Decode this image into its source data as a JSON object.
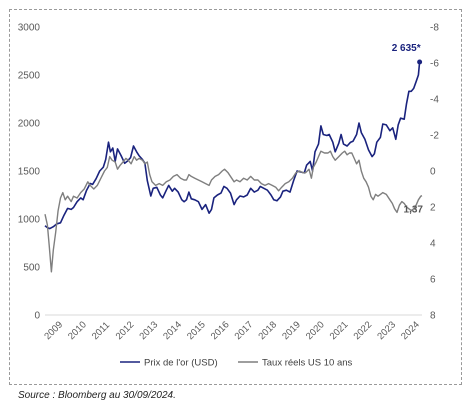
{
  "source_note": "Source : Bloomberg au 30/09/2024.",
  "colors": {
    "gold": "#1a237e",
    "real_rates": "#7f7f7f",
    "axis": "#d9d9d9",
    "tick_text": "#595959"
  },
  "chart_data": {
    "type": "line",
    "title": "",
    "xlabel": "",
    "ylabel": "",
    "y_left_ticks": [
      "0",
      "500",
      "1000",
      "1500",
      "2000",
      "2500",
      "3000"
    ],
    "y_left_range": [
      0,
      3000
    ],
    "y_right_ticks": [
      "8",
      "6",
      "4",
      "2",
      "0",
      "-2",
      "-4",
      "-6",
      "-8"
    ],
    "y_right_range": [
      8,
      -8
    ],
    "y_right_inverted": true,
    "x_ticks": [
      "2009",
      "2010",
      "2011",
      "2012",
      "2013",
      "2014",
      "2015",
      "2016",
      "2017",
      "2018",
      "2019",
      "2020",
      "2021",
      "2022",
      "2023",
      "2024"
    ],
    "x_range": [
      2009,
      2024.85
    ],
    "grid": false,
    "legend_position": "bottom",
    "annotations": [
      {
        "text": "2 635*",
        "series": "gold"
      },
      {
        "text": "1,37",
        "series": "real_rates"
      }
    ],
    "series": [
      {
        "name": "Prix de l'or (USD)",
        "key": "gold",
        "axis": "left",
        "color": "#1a237e",
        "points": [
          [
            2009.0,
            930
          ],
          [
            2009.1,
            910
          ],
          [
            2009.2,
            900
          ],
          [
            2009.35,
            920
          ],
          [
            2009.5,
            950
          ],
          [
            2009.65,
            960
          ],
          [
            2009.8,
            1040
          ],
          [
            2009.95,
            1110
          ],
          [
            2010.1,
            1100
          ],
          [
            2010.2,
            1120
          ],
          [
            2010.35,
            1180
          ],
          [
            2010.5,
            1220
          ],
          [
            2010.6,
            1200
          ],
          [
            2010.75,
            1300
          ],
          [
            2010.9,
            1370
          ],
          [
            2011.0,
            1360
          ],
          [
            2011.15,
            1420
          ],
          [
            2011.3,
            1500
          ],
          [
            2011.45,
            1540
          ],
          [
            2011.55,
            1620
          ],
          [
            2011.67,
            1800
          ],
          [
            2011.75,
            1700
          ],
          [
            2011.85,
            1740
          ],
          [
            2011.95,
            1600
          ],
          [
            2012.05,
            1730
          ],
          [
            2012.2,
            1660
          ],
          [
            2012.35,
            1580
          ],
          [
            2012.45,
            1600
          ],
          [
            2012.6,
            1640
          ],
          [
            2012.72,
            1760
          ],
          [
            2012.85,
            1700
          ],
          [
            2012.95,
            1660
          ],
          [
            2013.1,
            1620
          ],
          [
            2013.2,
            1580
          ],
          [
            2013.3,
            1400
          ],
          [
            2013.45,
            1240
          ],
          [
            2013.55,
            1320
          ],
          [
            2013.7,
            1330
          ],
          [
            2013.85,
            1250
          ],
          [
            2013.95,
            1220
          ],
          [
            2014.1,
            1300
          ],
          [
            2014.2,
            1350
          ],
          [
            2014.35,
            1290
          ],
          [
            2014.45,
            1320
          ],
          [
            2014.6,
            1280
          ],
          [
            2014.75,
            1200
          ],
          [
            2014.85,
            1180
          ],
          [
            2014.95,
            1200
          ],
          [
            2015.05,
            1280
          ],
          [
            2015.15,
            1210
          ],
          [
            2015.3,
            1200
          ],
          [
            2015.45,
            1180
          ],
          [
            2015.6,
            1100
          ],
          [
            2015.75,
            1150
          ],
          [
            2015.9,
            1060
          ],
          [
            2016.0,
            1100
          ],
          [
            2016.1,
            1220
          ],
          [
            2016.25,
            1250
          ],
          [
            2016.4,
            1270
          ],
          [
            2016.52,
            1340
          ],
          [
            2016.65,
            1320
          ],
          [
            2016.8,
            1270
          ],
          [
            2016.95,
            1150
          ],
          [
            2017.05,
            1200
          ],
          [
            2017.2,
            1240
          ],
          [
            2017.35,
            1230
          ],
          [
            2017.5,
            1250
          ],
          [
            2017.65,
            1320
          ],
          [
            2017.8,
            1280
          ],
          [
            2017.95,
            1300
          ],
          [
            2018.05,
            1340
          ],
          [
            2018.2,
            1320
          ],
          [
            2018.35,
            1300
          ],
          [
            2018.5,
            1250
          ],
          [
            2018.62,
            1200
          ],
          [
            2018.75,
            1190
          ],
          [
            2018.9,
            1230
          ],
          [
            2019.0,
            1290
          ],
          [
            2019.15,
            1300
          ],
          [
            2019.3,
            1280
          ],
          [
            2019.45,
            1400
          ],
          [
            2019.6,
            1500
          ],
          [
            2019.75,
            1490
          ],
          [
            2019.9,
            1480
          ],
          [
            2020.0,
            1560
          ],
          [
            2020.15,
            1600
          ],
          [
            2020.25,
            1500
          ],
          [
            2020.35,
            1700
          ],
          [
            2020.5,
            1780
          ],
          [
            2020.6,
            1970
          ],
          [
            2020.7,
            1880
          ],
          [
            2020.85,
            1870
          ],
          [
            2020.95,
            1880
          ],
          [
            2021.1,
            1800
          ],
          [
            2021.2,
            1700
          ],
          [
            2021.35,
            1790
          ],
          [
            2021.45,
            1880
          ],
          [
            2021.55,
            1780
          ],
          [
            2021.7,
            1760
          ],
          [
            2021.85,
            1800
          ],
          [
            2021.95,
            1810
          ],
          [
            2022.1,
            1880
          ],
          [
            2022.2,
            2000
          ],
          [
            2022.3,
            1900
          ],
          [
            2022.45,
            1830
          ],
          [
            2022.6,
            1720
          ],
          [
            2022.75,
            1650
          ],
          [
            2022.85,
            1680
          ],
          [
            2022.95,
            1800
          ],
          [
            2023.1,
            1850
          ],
          [
            2023.2,
            1990
          ],
          [
            2023.35,
            1980
          ],
          [
            2023.5,
            1920
          ],
          [
            2023.62,
            1950
          ],
          [
            2023.75,
            1830
          ],
          [
            2023.85,
            1980
          ],
          [
            2023.95,
            2050
          ],
          [
            2024.1,
            2040
          ],
          [
            2024.2,
            2200
          ],
          [
            2024.3,
            2330
          ],
          [
            2024.4,
            2330
          ],
          [
            2024.5,
            2360
          ],
          [
            2024.6,
            2430
          ],
          [
            2024.7,
            2500
          ],
          [
            2024.75,
            2635
          ]
        ]
      },
      {
        "name": "Taux réels US 10 ans",
        "key": "real_rates",
        "axis": "right",
        "color": "#7f7f7f",
        "points": [
          [
            2009.0,
            2.4
          ],
          [
            2009.1,
            3.0
          ],
          [
            2009.18,
            4.2
          ],
          [
            2009.27,
            5.6
          ],
          [
            2009.35,
            4.4
          ],
          [
            2009.45,
            3.4
          ],
          [
            2009.55,
            2.2
          ],
          [
            2009.65,
            1.5
          ],
          [
            2009.75,
            1.2
          ],
          [
            2009.85,
            1.6
          ],
          [
            2009.95,
            1.4
          ],
          [
            2010.1,
            1.7
          ],
          [
            2010.2,
            1.4
          ],
          [
            2010.35,
            1.5
          ],
          [
            2010.5,
            1.2
          ],
          [
            2010.65,
            1.0
          ],
          [
            2010.8,
            0.6
          ],
          [
            2010.9,
            0.8
          ],
          [
            2011.05,
            1.0
          ],
          [
            2011.2,
            0.8
          ],
          [
            2011.35,
            0.4
          ],
          [
            2011.5,
            0.0
          ],
          [
            2011.62,
            -0.2
          ],
          [
            2011.72,
            -0.8
          ],
          [
            2011.82,
            -0.6
          ],
          [
            2011.95,
            -0.5
          ],
          [
            2012.05,
            -0.1
          ],
          [
            2012.15,
            -0.3
          ],
          [
            2012.28,
            -0.5
          ],
          [
            2012.4,
            -0.7
          ],
          [
            2012.5,
            -0.6
          ],
          [
            2012.62,
            -0.4
          ],
          [
            2012.75,
            -0.8
          ],
          [
            2012.85,
            -0.6
          ],
          [
            2012.95,
            -0.7
          ],
          [
            2013.1,
            -0.6
          ],
          [
            2013.2,
            -0.4
          ],
          [
            2013.3,
            -0.5
          ],
          [
            2013.4,
            0.2
          ],
          [
            2013.5,
            0.6
          ],
          [
            2013.65,
            0.8
          ],
          [
            2013.8,
            0.7
          ],
          [
            2013.95,
            0.8
          ],
          [
            2014.1,
            0.6
          ],
          [
            2014.25,
            0.5
          ],
          [
            2014.4,
            0.3
          ],
          [
            2014.55,
            0.2
          ],
          [
            2014.7,
            0.4
          ],
          [
            2014.85,
            0.5
          ],
          [
            2014.95,
            0.5
          ],
          [
            2015.05,
            0.2
          ],
          [
            2015.15,
            0.3
          ],
          [
            2015.3,
            0.4
          ],
          [
            2015.45,
            0.5
          ],
          [
            2015.6,
            0.6
          ],
          [
            2015.75,
            0.7
          ],
          [
            2015.9,
            0.8
          ],
          [
            2016.0,
            0.5
          ],
          [
            2016.15,
            0.3
          ],
          [
            2016.3,
            0.2
          ],
          [
            2016.45,
            0.0
          ],
          [
            2016.55,
            -0.1
          ],
          [
            2016.7,
            0.1
          ],
          [
            2016.85,
            0.4
          ],
          [
            2016.95,
            0.6
          ],
          [
            2017.05,
            0.5
          ],
          [
            2017.2,
            0.6
          ],
          [
            2017.35,
            0.4
          ],
          [
            2017.5,
            0.5
          ],
          [
            2017.65,
            0.3
          ],
          [
            2017.8,
            0.5
          ],
          [
            2017.95,
            0.5
          ],
          [
            2018.1,
            0.7
          ],
          [
            2018.25,
            0.8
          ],
          [
            2018.4,
            0.7
          ],
          [
            2018.55,
            0.8
          ],
          [
            2018.7,
            0.9
          ],
          [
            2018.82,
            1.1
          ],
          [
            2018.95,
            0.9
          ],
          [
            2019.1,
            0.7
          ],
          [
            2019.25,
            0.6
          ],
          [
            2019.4,
            0.4
          ],
          [
            2019.55,
            0.1
          ],
          [
            2019.7,
            0.0
          ],
          [
            2019.85,
            0.1
          ],
          [
            2019.95,
            0.1
          ],
          [
            2020.1,
            -0.1
          ],
          [
            2020.2,
            0.4
          ],
          [
            2020.28,
            -0.2
          ],
          [
            2020.4,
            -0.5
          ],
          [
            2020.5,
            -0.8
          ],
          [
            2020.6,
            -1.1
          ],
          [
            2020.75,
            -1.0
          ],
          [
            2020.9,
            -1.0
          ],
          [
            2021.0,
            -1.1
          ],
          [
            2021.1,
            -0.8
          ],
          [
            2021.2,
            -0.6
          ],
          [
            2021.35,
            -0.8
          ],
          [
            2021.5,
            -1.0
          ],
          [
            2021.6,
            -1.1
          ],
          [
            2021.7,
            -0.9
          ],
          [
            2021.8,
            -1.0
          ],
          [
            2021.9,
            -1.0
          ],
          [
            2022.0,
            -0.7
          ],
          [
            2022.1,
            -0.4
          ],
          [
            2022.2,
            -0.6
          ],
          [
            2022.3,
            0.0
          ],
          [
            2022.4,
            0.4
          ],
          [
            2022.5,
            0.6
          ],
          [
            2022.6,
            0.9
          ],
          [
            2022.7,
            1.4
          ],
          [
            2022.8,
            1.6
          ],
          [
            2022.9,
            1.3
          ],
          [
            2023.0,
            1.4
          ],
          [
            2023.1,
            1.3
          ],
          [
            2023.2,
            1.2
          ],
          [
            2023.35,
            1.3
          ],
          [
            2023.5,
            1.6
          ],
          [
            2023.6,
            1.8
          ],
          [
            2023.7,
            2.1
          ],
          [
            2023.8,
            2.3
          ],
          [
            2023.9,
            1.9
          ],
          [
            2024.0,
            1.7
          ],
          [
            2024.1,
            1.8
          ],
          [
            2024.2,
            2.0
          ],
          [
            2024.3,
            2.1
          ],
          [
            2024.4,
            2.2
          ],
          [
            2024.5,
            2.1
          ],
          [
            2024.6,
            1.9
          ],
          [
            2024.7,
            1.6
          ],
          [
            2024.8,
            1.4
          ],
          [
            2024.85,
            1.37
          ]
        ]
      }
    ]
  }
}
